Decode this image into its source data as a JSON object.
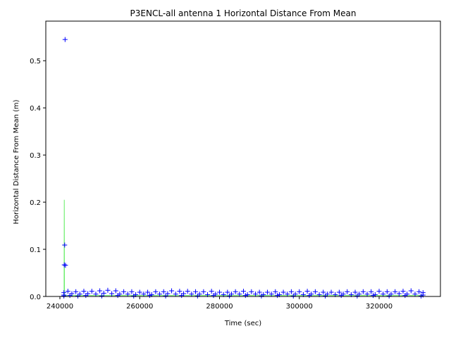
{
  "chart_data": {
    "type": "scatter",
    "title": "P3ENCL-all antenna 1 Horizontal Distance From Mean",
    "x_label": "Time (sec)",
    "y_label": "Horizontal Distance From Mean (m)",
    "xlim": [
      236470,
      335360
    ],
    "ylim": [
      0,
      0.584
    ],
    "xticks": [
      240000,
      260000,
      280000,
      300000,
      320000
    ],
    "yticks": [
      {
        "value": 0,
        "label": "0.0"
      },
      {
        "value": 0.1,
        "label": "0.1"
      },
      {
        "value": 0.2,
        "label": "0.2"
      },
      {
        "value": 0.3,
        "label": "0.3"
      },
      {
        "value": 0.4,
        "label": "0.4"
      },
      {
        "value": 0.5,
        "label": "0.5"
      }
    ],
    "series": [
      {
        "style": "line",
        "color": "#66ee66",
        "x": [
          241050,
          241100,
          241150,
          331000
        ],
        "values": [
          0.002,
          0.205,
          0.002,
          0.002
        ]
      },
      {
        "style": "marker",
        "color": "#0000ff",
        "x": [
          241000,
          242000,
          244000,
          246000,
          248000,
          250000,
          252000,
          254000,
          256000,
          258000,
          260000,
          262000,
          264000,
          266000,
          268000,
          270000,
          272000,
          274000,
          276000,
          278000,
          280000,
          282000,
          284000,
          286000,
          288000,
          290000,
          292000,
          294000,
          296000,
          298000,
          300000,
          302000,
          304000,
          306000,
          308000,
          310000,
          312000,
          314000,
          316000,
          318000,
          320000,
          322000,
          324000,
          326000,
          328000,
          330000,
          331000
        ],
        "values": [
          0.008,
          0.011,
          0.01,
          0.011,
          0.011,
          0.012,
          0.013,
          0.012,
          0.01,
          0.01,
          0.009,
          0.009,
          0.01,
          0.01,
          0.012,
          0.011,
          0.011,
          0.01,
          0.01,
          0.011,
          0.009,
          0.009,
          0.01,
          0.011,
          0.01,
          0.009,
          0.009,
          0.01,
          0.009,
          0.01,
          0.01,
          0.011,
          0.01,
          0.009,
          0.009,
          0.009,
          0.01,
          0.009,
          0.01,
          0.01,
          0.011,
          0.01,
          0.01,
          0.011,
          0.012,
          0.01,
          0.008
        ]
      },
      {
        "style": "marker",
        "color": "#0000ff",
        "x": [
          241000,
          243000,
          245000,
          247000,
          249000,
          251000,
          253000,
          255000,
          257000,
          259000,
          261000,
          263000,
          265000,
          267000,
          269000,
          271000,
          273000,
          275000,
          277000,
          279000,
          281000,
          283000,
          285000,
          287000,
          289000,
          291000,
          293000,
          295000,
          297000,
          299000,
          301000,
          303000,
          305000,
          307000,
          309000,
          311000,
          313000,
          315000,
          317000,
          319000,
          321000,
          323000,
          325000,
          327000,
          329000,
          331000
        ],
        "values": [
          0.003,
          0.006,
          0.005,
          0.006,
          0.005,
          0.007,
          0.006,
          0.005,
          0.005,
          0.004,
          0.005,
          0.004,
          0.005,
          0.006,
          0.005,
          0.006,
          0.005,
          0.005,
          0.004,
          0.005,
          0.004,
          0.005,
          0.005,
          0.004,
          0.005,
          0.004,
          0.005,
          0.004,
          0.005,
          0.005,
          0.004,
          0.005,
          0.004,
          0.005,
          0.004,
          0.005,
          0.004,
          0.005,
          0.005,
          0.004,
          0.005,
          0.005,
          0.006,
          0.005,
          0.005,
          0.003
        ]
      },
      {
        "style": "marker",
        "color": "#0000ff",
        "x": [
          241000,
          242500,
          244500,
          246500,
          250500,
          254500,
          258500,
          262500,
          266500,
          270500,
          274500,
          278500,
          282500,
          286500,
          290500,
          294500,
          298500,
          302500,
          306500,
          310500,
          314500,
          318500,
          322500,
          326500,
          330500
        ],
        "values": [
          0.001,
          0.002,
          0.001,
          0.002,
          0.001,
          0.002,
          0.001,
          0.002,
          0.001,
          0.002,
          0.001,
          0.002,
          0.001,
          0.002,
          0.001,
          0.002,
          0.001,
          0.002,
          0.001,
          0.002,
          0.001,
          0.002,
          0.001,
          0.002,
          0.001
        ]
      },
      {
        "style": "marker",
        "color": "#0000ff",
        "x": [
          241300,
          241200,
          241100,
          241400
        ],
        "values": [
          0.545,
          0.109,
          0.067,
          0.066
        ]
      }
    ]
  }
}
